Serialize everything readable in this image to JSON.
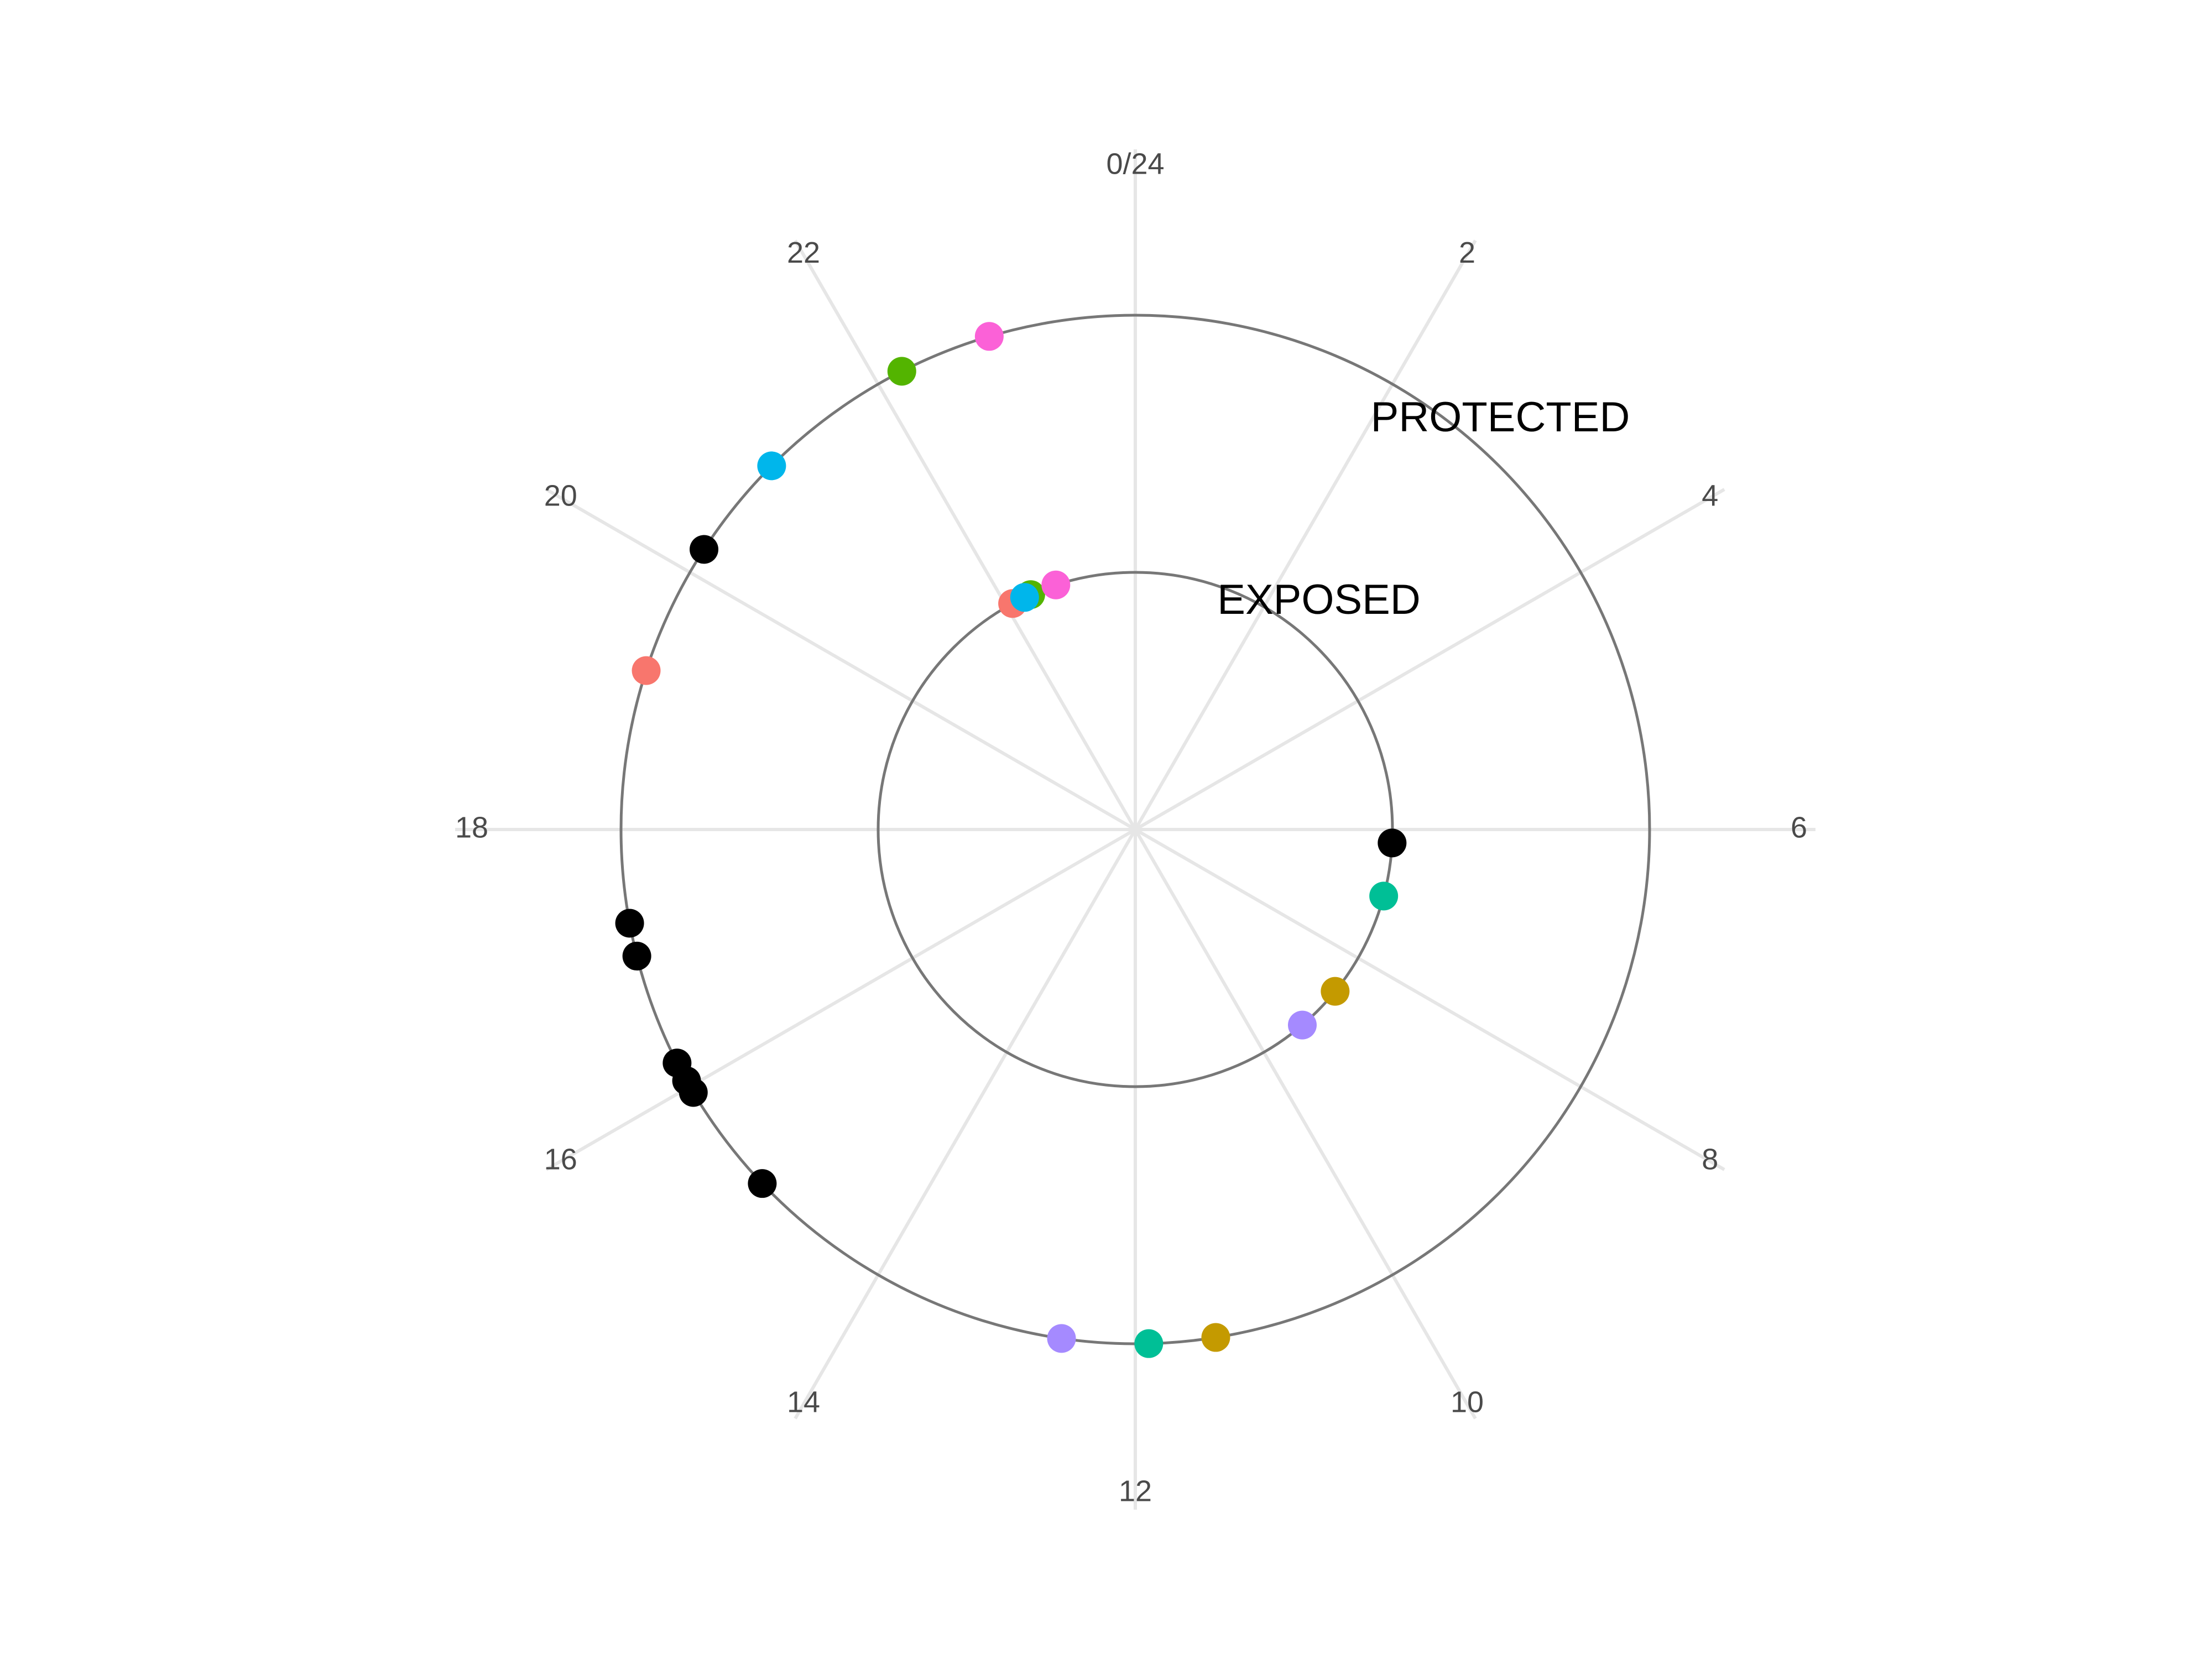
{
  "chart_data": {
    "type": "scatter",
    "coordinate_system": "polar",
    "angular_axis": {
      "unit": "hour",
      "range": [
        0,
        24
      ],
      "direction": "clockwise",
      "zero_at": "top",
      "ticks": [
        0,
        2,
        4,
        6,
        8,
        10,
        12,
        14,
        16,
        18,
        20,
        22
      ],
      "tick_labels": [
        "0/24",
        "2",
        "4",
        "6",
        "8",
        "10",
        "12",
        "14",
        "16",
        "18",
        "20",
        "22"
      ]
    },
    "rings": [
      {
        "label": "EXPOSED",
        "radius_level": 1
      },
      {
        "label": "PROTECTED",
        "radius_level": 2
      }
    ],
    "grid": true,
    "legend": "none",
    "points": [
      {
        "hour": 6.2,
        "ring": "EXPOSED",
        "color": "#000000"
      },
      {
        "hour": 7.0,
        "ring": "EXPOSED",
        "color": "#00BF96"
      },
      {
        "hour": 8.6,
        "ring": "EXPOSED",
        "color": "#C49A00"
      },
      {
        "hour": 9.3,
        "ring": "EXPOSED",
        "color": "#A58AFF"
      },
      {
        "hour": 22.1,
        "ring": "EXPOSED",
        "color": "#F8766D"
      },
      {
        "hour": 22.4,
        "ring": "EXPOSED",
        "color": "#53B400"
      },
      {
        "hour": 22.3,
        "ring": "EXPOSED",
        "color": "#00B6EB"
      },
      {
        "hour": 22.8,
        "ring": "EXPOSED",
        "color": "#FB61D7"
      },
      {
        "hour": 22.9,
        "ring": "PROTECTED",
        "color": "#FB61D7"
      },
      {
        "hour": 22.2,
        "ring": "PROTECTED",
        "color": "#53B400"
      },
      {
        "hour": 21.0,
        "ring": "PROTECTED",
        "color": "#00B6EB"
      },
      {
        "hour": 20.2,
        "ring": "PROTECTED",
        "color": "#000000"
      },
      {
        "hour": 19.2,
        "ring": "PROTECTED",
        "color": "#F8766D"
      },
      {
        "hour": 17.3,
        "ring": "PROTECTED",
        "color": "#000000"
      },
      {
        "hour": 17.05,
        "ring": "PROTECTED",
        "color": "#000000"
      },
      {
        "hour": 16.2,
        "ring": "PROTECTED",
        "color": "#000000"
      },
      {
        "hour": 16.05,
        "ring": "PROTECTED",
        "color": "#000000"
      },
      {
        "hour": 15.95,
        "ring": "PROTECTED",
        "color": "#000000"
      },
      {
        "hour": 15.1,
        "ring": "PROTECTED",
        "color": "#000000"
      },
      {
        "hour": 12.55,
        "ring": "PROTECTED",
        "color": "#A58AFF"
      },
      {
        "hour": 11.9,
        "ring": "PROTECTED",
        "color": "#00BF96"
      },
      {
        "hour": 11.4,
        "ring": "PROTECTED",
        "color": "#C49A00"
      }
    ]
  }
}
